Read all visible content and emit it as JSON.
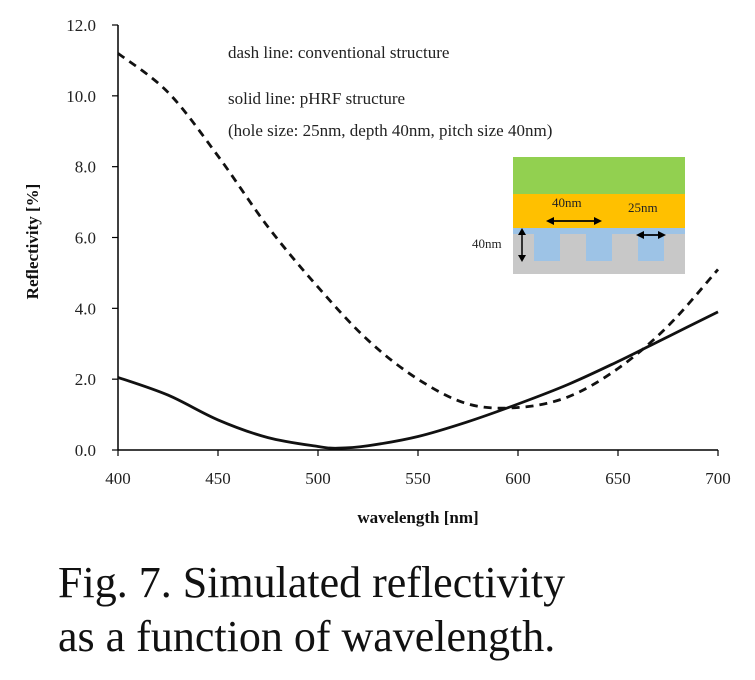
{
  "chart_data": {
    "type": "line",
    "xlabel": "wavelength [nm]",
    "ylabel": "Reflectivity [%]",
    "xlim": [
      400,
      700
    ],
    "ylim": [
      0,
      12
    ],
    "x_ticks": [
      "400",
      "450",
      "500",
      "550",
      "600",
      "650",
      "700"
    ],
    "y_ticks": [
      "0.0",
      "2.0",
      "4.0",
      "6.0",
      "8.0",
      "10.0",
      "12.0"
    ],
    "grid": false,
    "annotations": [
      "dash line:  conventional  structure",
      "solid line:  pHRF structure",
      "(hole size: 25nm, depth 40nm, pitch size 40nm)"
    ],
    "series": [
      {
        "style": "dashed",
        "color": "#111111",
        "x": [
          400,
          425,
          450,
          475,
          500,
          525,
          550,
          575,
          600,
          625,
          650,
          675,
          700
        ],
        "y": [
          11.2,
          10.1,
          8.3,
          6.3,
          4.6,
          3.1,
          2.0,
          1.3,
          1.2,
          1.5,
          2.3,
          3.5,
          5.1
        ]
      },
      {
        "style": "solid",
        "color": "#111111",
        "x": [
          400,
          425,
          450,
          475,
          500,
          510,
          525,
          550,
          575,
          600,
          625,
          650,
          675,
          700
        ],
        "y": [
          2.05,
          1.55,
          0.85,
          0.35,
          0.1,
          0.05,
          0.12,
          0.38,
          0.8,
          1.3,
          1.85,
          2.5,
          3.2,
          3.9
        ]
      }
    ]
  },
  "inset": {
    "pitch_label": "40nm",
    "hole_label": "25nm",
    "depth_label": "40nm",
    "colors": {
      "top": "#92d050",
      "middle": "#ffc000",
      "holes": "#9dc3e6",
      "substrate": "#c8c8c8"
    }
  },
  "caption": {
    "line1": "Fig. 7. Simulated reflectivity",
    "line2": "as a function of wavelength."
  }
}
